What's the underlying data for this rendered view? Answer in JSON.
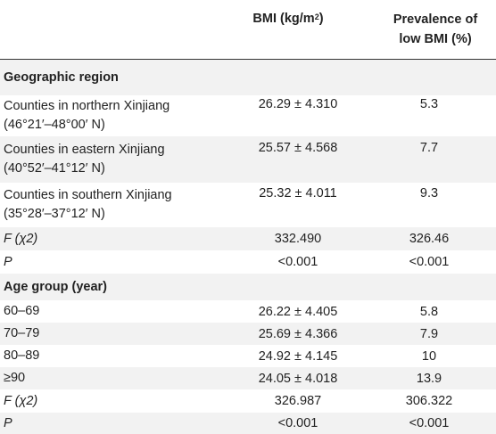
{
  "header": {
    "bmi": "BMI (kg/m",
    "bmi_sup": "2",
    "bmi_close": ")",
    "prevalence_line1": "Prevalence of",
    "prevalence_line2": "low BMI (%)"
  },
  "sections": [
    {
      "title": "Geographic region",
      "rows": [
        {
          "label1": "Counties in northern Xinjiang",
          "label2": "(46°21′–48°00′ N)",
          "bmi": "26.29 ± 4.310",
          "prev": "5.3"
        },
        {
          "label1": "Counties in eastern Xinjiang",
          "label2": "(40°52′–41°12′ N)",
          "bmi": "25.57 ± 4.568",
          "prev": "7.7"
        },
        {
          "label1": "Counties in southern Xinjiang",
          "label2": "(35°28′–37°12′ N)",
          "bmi": "25.32 ± 4.011",
          "prev": "9.3"
        },
        {
          "label1": "F (χ2)",
          "bmi": "332.490",
          "prev": "326.46"
        },
        {
          "label1": "P",
          "bmi": "<0.001",
          "prev": "<0.001"
        }
      ]
    },
    {
      "title": "Age group (year)",
      "rows": [
        {
          "label1": "60–69",
          "bmi": "26.22 ± 4.405",
          "prev": "5.8"
        },
        {
          "label1": "70–79",
          "bmi": "25.69 ± 4.366",
          "prev": "7.9"
        },
        {
          "label1": "80–89",
          "bmi": "24.92 ± 4.145",
          "prev": "10"
        },
        {
          "label1": "≥90",
          "bmi": "24.05 ± 4.018",
          "prev": "13.9"
        },
        {
          "label1": "F (χ2)",
          "bmi": "326.987",
          "prev": "306.322"
        },
        {
          "label1": "P",
          "bmi": "<0.001",
          "prev": "<0.001"
        }
      ]
    }
  ]
}
